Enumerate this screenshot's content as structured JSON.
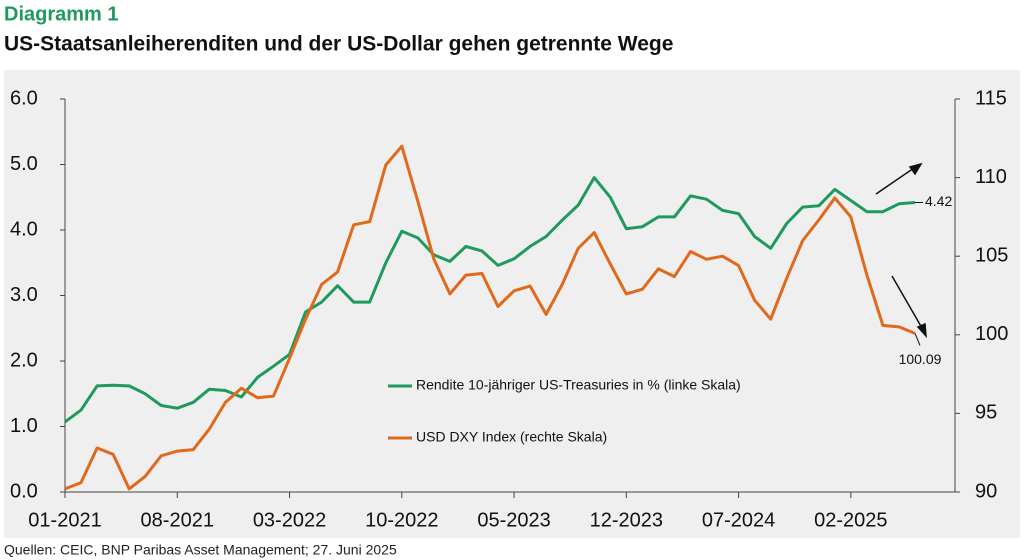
{
  "chart_data": {
    "type": "line",
    "title": "Diagramm 1",
    "subtitle": "US-Staatsanleiherenditen und der US-Dollar gehen getrennte Wege",
    "source": "Quellen: CEIC, BNP Paribas Asset Management; 27. Juni 2025",
    "categories": [
      "01-2021",
      null,
      null,
      null,
      null,
      null,
      null,
      "08-2021",
      null,
      null,
      null,
      null,
      null,
      null,
      "03-2022",
      null,
      null,
      null,
      null,
      null,
      null,
      "10-2022",
      null,
      null,
      null,
      null,
      null,
      null,
      "05-2023",
      null,
      null,
      null,
      null,
      null,
      null,
      "12-2023",
      null,
      null,
      null,
      null,
      null,
      null,
      "07-2024",
      null,
      null,
      null,
      null,
      null,
      null,
      "02-2025",
      null,
      null,
      null,
      null
    ],
    "ylim": [
      0,
      6
    ],
    "yticks": [
      {
        "value": 0,
        "label": "0.0"
      },
      {
        "value": 1,
        "label": "1.0"
      },
      {
        "value": 2,
        "label": "2.0"
      },
      {
        "value": 3,
        "label": "3.0"
      },
      {
        "value": 4,
        "label": "4.0"
      },
      {
        "value": 5,
        "label": "5.0"
      },
      {
        "value": 6,
        "label": "6.0"
      }
    ],
    "y2lim": [
      90,
      115
    ],
    "y2ticks": [
      90,
      95,
      100,
      105,
      110,
      115
    ],
    "series": [
      {
        "name": "Rendite 10-jähriger US-Treasuries in % (linke Skala)",
        "color": "#1e9a5c",
        "axis": "y",
        "values": [
          1.07,
          1.25,
          1.62,
          1.63,
          1.62,
          1.5,
          1.32,
          1.28,
          1.37,
          1.57,
          1.55,
          1.45,
          1.75,
          1.92,
          2.1,
          2.75,
          2.9,
          3.15,
          2.9,
          2.9,
          3.5,
          3.98,
          3.88,
          3.62,
          3.52,
          3.75,
          3.68,
          3.46,
          3.56,
          3.75,
          3.9,
          4.15,
          4.38,
          4.8,
          4.5,
          4.02,
          4.05,
          4.2,
          4.2,
          4.52,
          4.47,
          4.3,
          4.25,
          3.9,
          3.72,
          4.1,
          4.35,
          4.37,
          4.62,
          4.45,
          4.28,
          4.28,
          4.4,
          4.42
        ],
        "value_labels": [
          null,
          null,
          null,
          null,
          null,
          null,
          null,
          null,
          null,
          null,
          null,
          null,
          null,
          null,
          null,
          null,
          null,
          null,
          null,
          null,
          null,
          null,
          null,
          null,
          null,
          null,
          null,
          null,
          null,
          null,
          null,
          null,
          null,
          null,
          null,
          null,
          null,
          null,
          null,
          null,
          null,
          null,
          null,
          null,
          null,
          null,
          null,
          null,
          null,
          null,
          null,
          null,
          null,
          "4.42"
        ]
      },
      {
        "name": "USD DXY Index (rechte Skala)",
        "color": "#e0691c",
        "axis": "y2",
        "values": [
          90.2,
          90.6,
          92.8,
          92.4,
          90.2,
          91.0,
          92.3,
          92.6,
          92.7,
          94.0,
          95.7,
          96.6,
          96.0,
          96.1,
          98.5,
          101.0,
          103.2,
          104.0,
          107.0,
          107.2,
          110.8,
          112.0,
          108.5,
          104.8,
          102.6,
          103.8,
          103.9,
          101.8,
          102.8,
          103.1,
          101.3,
          103.2,
          105.5,
          106.5,
          104.5,
          102.6,
          102.9,
          104.2,
          103.7,
          105.3,
          104.8,
          105.0,
          104.4,
          102.2,
          101.0,
          103.6,
          106.0,
          107.3,
          108.7,
          107.5,
          103.8,
          100.6,
          100.5,
          100.09
        ],
        "value_labels": [
          null,
          null,
          null,
          null,
          null,
          null,
          null,
          null,
          null,
          null,
          null,
          null,
          null,
          null,
          null,
          null,
          null,
          null,
          null,
          null,
          null,
          null,
          null,
          null,
          null,
          null,
          null,
          null,
          null,
          null,
          null,
          null,
          null,
          null,
          null,
          null,
          null,
          null,
          null,
          null,
          null,
          null,
          null,
          null,
          null,
          null,
          null,
          null,
          null,
          null,
          null,
          null,
          null,
          "100.09"
        ]
      }
    ]
  }
}
